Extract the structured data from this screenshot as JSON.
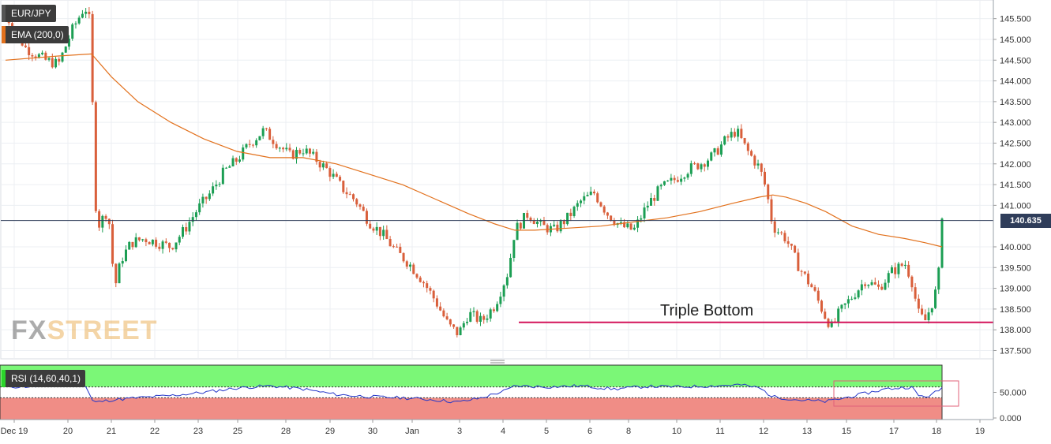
{
  "chart_data": {
    "type": "candlestick",
    "symbol_label": "EUR/JPY",
    "indicator_label": "EMA (200,0)",
    "last_price_label": "140.635",
    "annotation": "Triple Bottom",
    "support_level": 138.18,
    "last_price": 140.635,
    "price_axis": {
      "range": [
        137.3,
        145.95
      ],
      "ticks": [
        "145.500",
        "145.000",
        "144.500",
        "144.000",
        "143.500",
        "143.000",
        "142.500",
        "142.000",
        "141.500",
        "141.000",
        "140.000",
        "139.500",
        "139.000",
        "138.500",
        "138.000",
        "137.500"
      ]
    },
    "x_axis": {
      "ticks": [
        "Dec 19",
        "20",
        "21",
        "22",
        "23",
        "25",
        "28",
        "29",
        "30",
        "Jan",
        "3",
        "4",
        "5",
        "6",
        "8",
        "10",
        "11",
        "12",
        "13",
        "15",
        "17",
        "18",
        "19"
      ]
    },
    "price_path": [
      [
        0,
        145.6
      ],
      [
        3,
        144.8
      ],
      [
        6,
        144.5
      ],
      [
        8,
        144.4
      ],
      [
        10,
        145.2
      ],
      [
        12,
        145.8
      ],
      [
        13,
        145.3
      ],
      [
        13.3,
        141.5
      ],
      [
        14,
        140.5
      ],
      [
        15.5,
        140.9
      ],
      [
        16.5,
        139.0
      ],
      [
        17.5,
        139.7
      ],
      [
        19,
        140.1
      ],
      [
        21,
        140.2
      ],
      [
        23,
        140.1
      ],
      [
        25,
        140.0
      ],
      [
        27,
        140.4
      ],
      [
        29,
        140.9
      ],
      [
        31,
        141.3
      ],
      [
        33,
        141.8
      ],
      [
        35,
        142.1
      ],
      [
        37,
        142.5
      ],
      [
        39,
        142.8
      ],
      [
        41,
        142.5
      ],
      [
        43,
        142.2
      ],
      [
        45,
        142.35
      ],
      [
        47,
        142.1
      ],
      [
        49,
        141.8
      ],
      [
        51,
        141.4
      ],
      [
        53,
        141.1
      ],
      [
        55,
        140.6
      ],
      [
        57,
        140.3
      ],
      [
        59,
        139.9
      ],
      [
        61,
        139.6
      ],
      [
        63,
        139.2
      ],
      [
        65,
        138.7
      ],
      [
        67,
        138.1
      ],
      [
        68.5,
        137.9
      ],
      [
        70,
        138.4
      ],
      [
        72,
        138.2
      ],
      [
        74,
        138.6
      ],
      [
        76,
        139.4
      ],
      [
        77,
        140.4
      ],
      [
        79,
        140.8
      ],
      [
        81,
        140.5
      ],
      [
        83,
        140.4
      ],
      [
        85,
        140.7
      ],
      [
        87,
        141.1
      ],
      [
        89,
        141.3
      ],
      [
        91,
        140.8
      ],
      [
        93,
        140.5
      ],
      [
        95,
        140.4
      ],
      [
        97,
        141.0
      ],
      [
        99,
        141.4
      ],
      [
        101,
        141.6
      ],
      [
        103,
        141.85
      ],
      [
        105,
        142.0
      ],
      [
        107,
        142.2
      ],
      [
        109,
        142.6
      ],
      [
        110.5,
        142.8
      ],
      [
        112,
        142.35
      ],
      [
        114,
        141.9
      ],
      [
        115,
        141.4
      ],
      [
        116,
        140.5
      ],
      [
        118,
        140.2
      ],
      [
        120,
        139.5
      ],
      [
        122,
        139.0
      ],
      [
        124,
        138.3
      ],
      [
        125,
        138.05
      ],
      [
        126,
        138.4
      ],
      [
        128,
        138.8
      ],
      [
        130,
        139.2
      ],
      [
        132,
        139.0
      ],
      [
        134,
        139.4
      ],
      [
        136,
        139.6
      ],
      [
        137,
        139.2
      ],
      [
        138,
        138.4
      ],
      [
        139,
        138.2
      ],
      [
        140,
        138.6
      ],
      [
        141,
        139.1
      ],
      [
        141.6,
        140.8
      ]
    ],
    "ema_path": [
      [
        0,
        144.5
      ],
      [
        8,
        144.6
      ],
      [
        13,
        144.65
      ],
      [
        16,
        144.1
      ],
      [
        20,
        143.5
      ],
      [
        25,
        143.0
      ],
      [
        30,
        142.6
      ],
      [
        35,
        142.3
      ],
      [
        40,
        142.15
      ],
      [
        45,
        142.15
      ],
      [
        50,
        142.0
      ],
      [
        55,
        141.75
      ],
      [
        60,
        141.5
      ],
      [
        65,
        141.15
      ],
      [
        70,
        140.8
      ],
      [
        74,
        140.55
      ],
      [
        77,
        140.4
      ],
      [
        80,
        140.4
      ],
      [
        85,
        140.45
      ],
      [
        90,
        140.5
      ],
      [
        95,
        140.6
      ],
      [
        100,
        140.7
      ],
      [
        105,
        140.85
      ],
      [
        110,
        141.05
      ],
      [
        114,
        141.2
      ],
      [
        116,
        141.25
      ],
      [
        118,
        141.2
      ],
      [
        121,
        141.05
      ],
      [
        124,
        140.85
      ],
      [
        128,
        140.5
      ],
      [
        132,
        140.3
      ],
      [
        136,
        140.2
      ],
      [
        139,
        140.1
      ],
      [
        141.6,
        140.0
      ]
    ],
    "rsi": {
      "label": "RSI (14,60,40,1)",
      "levels": [
        60,
        40
      ],
      "range": [
        0,
        100
      ],
      "ticks": [
        "50.000",
        "0.000"
      ]
    },
    "rsi_path": [
      [
        0,
        60
      ],
      [
        6,
        61
      ],
      [
        12,
        64
      ],
      [
        13.3,
        31
      ],
      [
        16,
        36
      ],
      [
        20,
        40
      ],
      [
        25,
        44
      ],
      [
        30,
        50
      ],
      [
        35,
        58
      ],
      [
        40,
        62
      ],
      [
        45,
        56
      ],
      [
        50,
        46
      ],
      [
        55,
        42
      ],
      [
        60,
        40
      ],
      [
        65,
        36
      ],
      [
        68.5,
        32
      ],
      [
        72,
        40
      ],
      [
        76,
        55
      ],
      [
        77,
        62
      ],
      [
        82,
        60
      ],
      [
        87,
        62
      ],
      [
        92,
        56
      ],
      [
        97,
        61
      ],
      [
        102,
        60
      ],
      [
        107,
        62
      ],
      [
        111,
        64
      ],
      [
        114,
        58
      ],
      [
        116,
        42
      ],
      [
        120,
        36
      ],
      [
        124,
        33
      ],
      [
        127,
        40
      ],
      [
        130,
        48
      ],
      [
        133,
        56
      ],
      [
        137,
        60
      ],
      [
        138,
        44
      ],
      [
        139,
        42
      ],
      [
        140,
        45
      ],
      [
        141.6,
        58
      ]
    ]
  },
  "brand": {
    "watermark_fx": "FX",
    "watermark_street": "STREET"
  },
  "colors": {
    "bull": "#1b9e53",
    "bear": "#d95f3b",
    "ema": "#e2711d",
    "support": "#d4145a",
    "last_price_line": "#2f3d5a",
    "rsi_line": "#2436c8",
    "rsi_overbought": "#7bf777",
    "rsi_oversold": "#f08d86"
  }
}
